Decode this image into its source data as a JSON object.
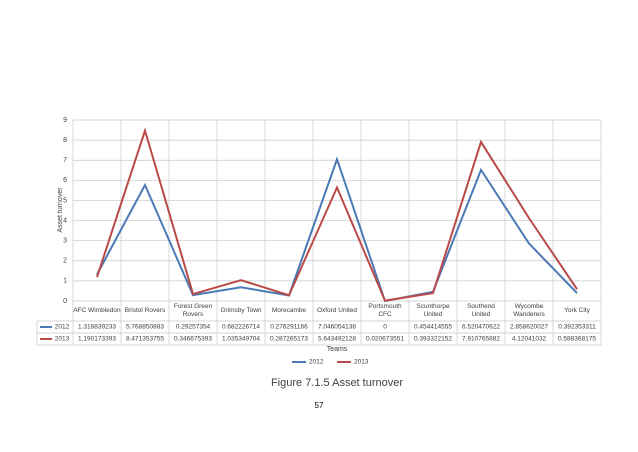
{
  "chart_data": {
    "type": "line",
    "ylabel": "Asset turnover",
    "xlabel": "Teams",
    "categories": [
      "AFC Wimbledon",
      "Bristol Rovers",
      "Forest Green Rovers",
      "Grimsby Town",
      "Morecambe",
      "Oxford United",
      "Portsmouth CFC",
      "Scunthorpe United",
      "Southend United",
      "Wycombe Wanderers",
      "York City"
    ],
    "series": [
      {
        "name": "2012",
        "color": "#4a7ab5",
        "values": [
          1.318839233,
          5.768850883,
          0.29257354,
          0.682226714,
          0.276291166,
          7.046054138,
          0,
          0.454414555,
          6.520470622,
          2.858620027,
          0.392353311
        ]
      },
      {
        "name": "2013",
        "color": "#b94a48",
        "values": [
          1.190173393,
          8.471353755,
          0.346675393,
          1.035349704,
          0.287265173,
          5.643492128,
          0.020673551,
          0.393322152,
          7.910765882,
          4.12041032,
          0.588368175
        ]
      }
    ],
    "ylim": [
      0,
      9
    ],
    "yticks": [
      0,
      1,
      2,
      3,
      4,
      5,
      6,
      7,
      8,
      9
    ],
    "grid": true,
    "legend": "bottom"
  },
  "caption": "Figure 7.1.5 Asset turnover",
  "page_number": "57"
}
